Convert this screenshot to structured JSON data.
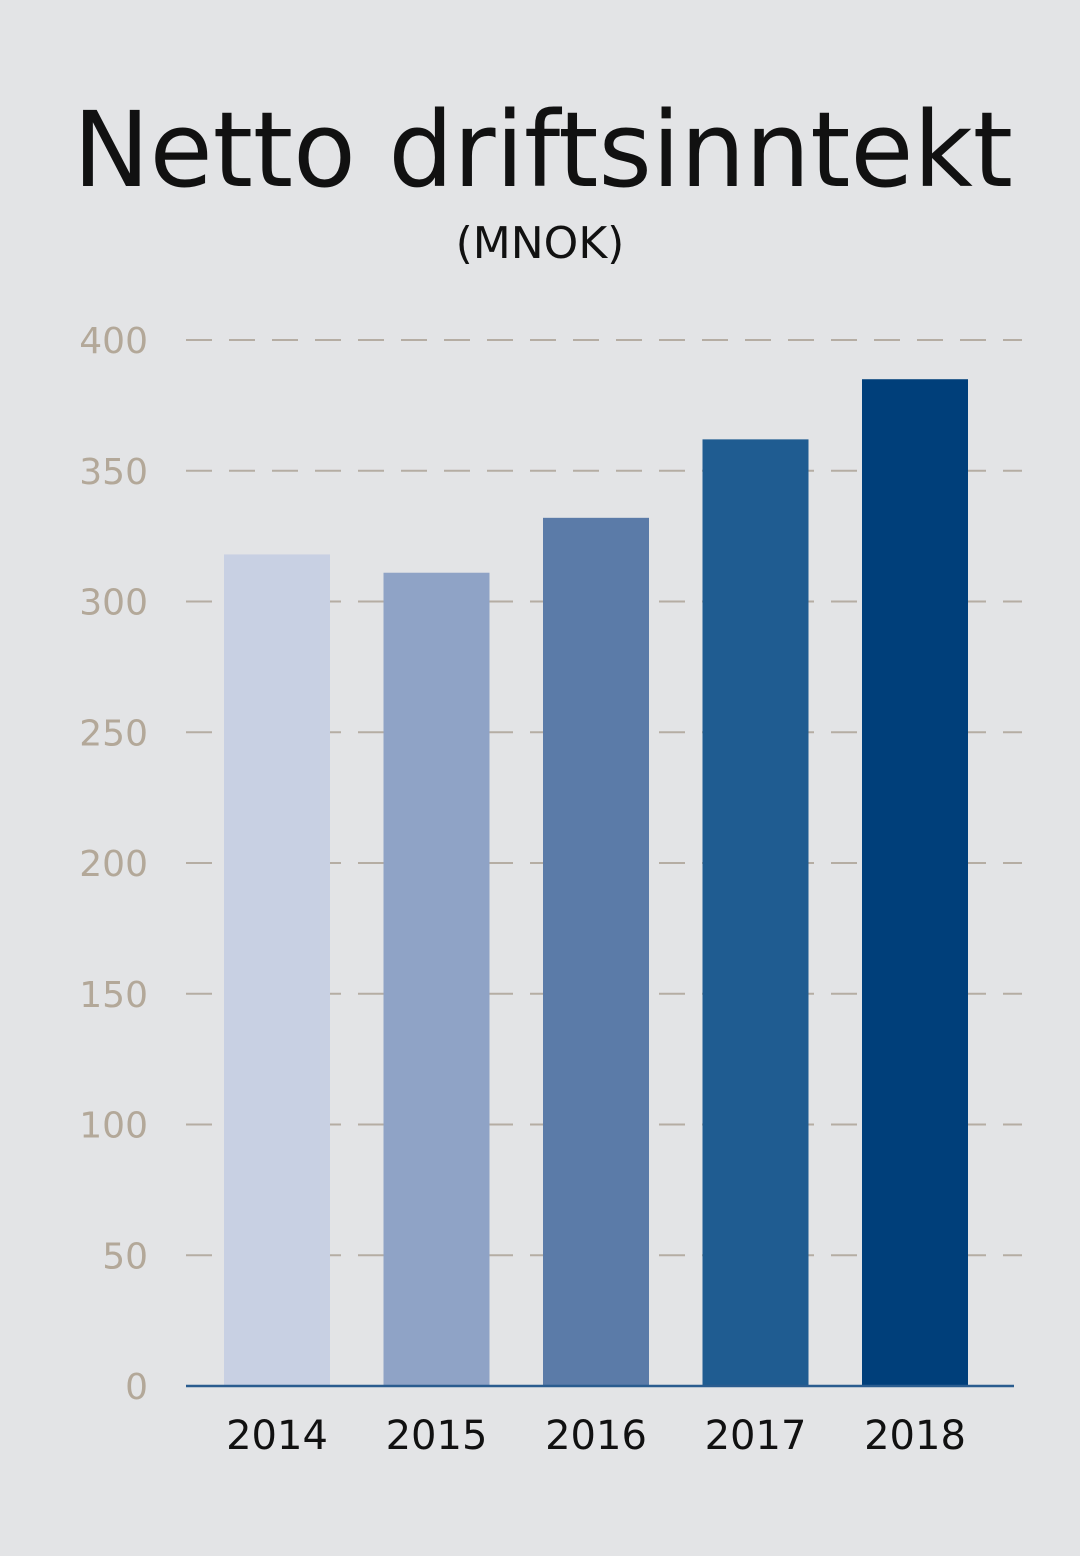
{
  "chart_data": {
    "type": "bar",
    "title": "Netto driftsinntekt",
    "subtitle": "(MNOK)",
    "categories": [
      "2014",
      "2015",
      "2016",
      "2017",
      "2018"
    ],
    "values": [
      318,
      311,
      332,
      362,
      385
    ],
    "ylim": [
      0,
      400
    ],
    "yticks": [
      0,
      50,
      100,
      150,
      200,
      250,
      300,
      350,
      400
    ],
    "grid": "dashed horizontal",
    "colors": [
      "#c8d0e3",
      "#8fa3c6",
      "#5b7ba8",
      "#1f5c91",
      "#003f7a"
    ],
    "axis_color": "#2a5c8f",
    "background": "#e3e4e6"
  }
}
